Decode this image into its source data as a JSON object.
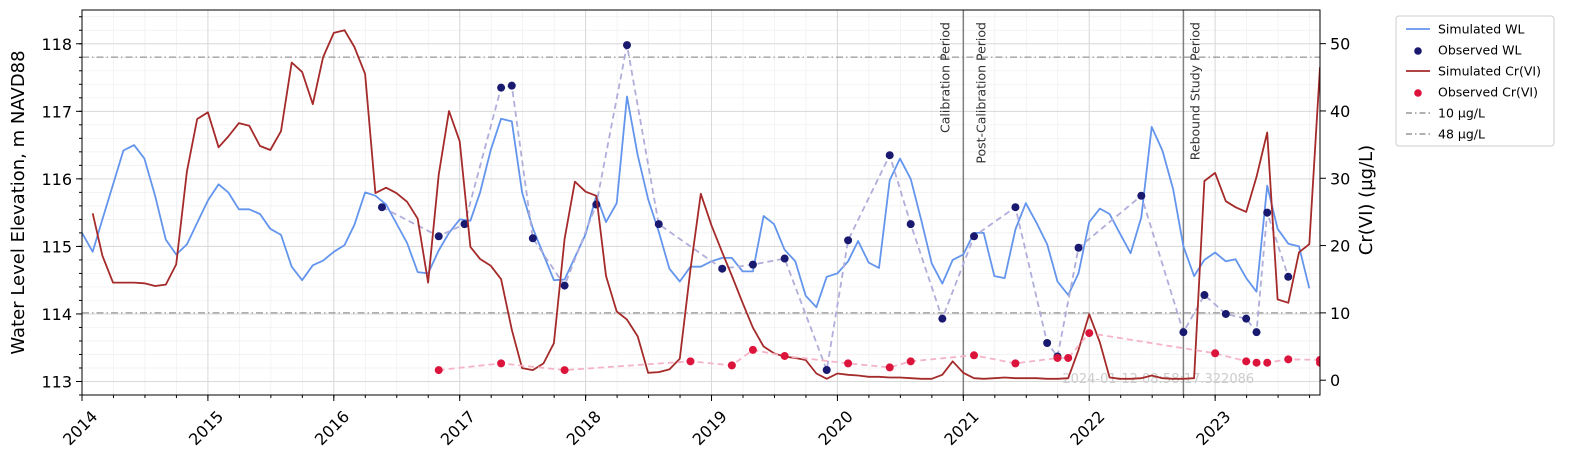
{
  "chart_data": {
    "type": "line",
    "xlim": [
      "2014-01-01",
      "2023-11-01"
    ],
    "x_ticks": [
      "2014",
      "2015",
      "2016",
      "2017",
      "2018",
      "2019",
      "2020",
      "2021",
      "2022",
      "2023"
    ],
    "ylabel_left": "Water Level Elevation, m NAVD88",
    "ylim_left": [
      112.8,
      118.5
    ],
    "yticks_left": [
      113,
      114,
      115,
      116,
      117,
      118
    ],
    "ylabel_right": "Cr(VI) (µg/L)",
    "ylim_right": [
      -2.2,
      55
    ],
    "yticks_right": [
      0,
      10,
      20,
      30,
      40,
      50
    ],
    "grid": true,
    "legend_position": "outside upper right",
    "watermark": "2024-01-12 08:58:17.322086",
    "period_lines": [
      {
        "date": "2021-01-01",
        "labels": [
          "Calibration Period",
          "Post-Calibration Period"
        ]
      },
      {
        "date": "2022-10-01",
        "labels": [
          "Rebound Study Period"
        ]
      }
    ],
    "thresholds": [
      {
        "name": "10 µg/L",
        "value": 10
      },
      {
        "name": "48 µg/L",
        "value": 48
      }
    ],
    "series": [
      {
        "name": "Simulated WL",
        "kind": "line",
        "axis": "left",
        "color": "#6495ED",
        "x": [
          "2014-01-01",
          "2014-02-01",
          "2014-03-01",
          "2014-05-01",
          "2014-06-01",
          "2014-07-01",
          "2014-08-01",
          "2014-09-01",
          "2014-10-01",
          "2014-11-01",
          "2014-12-01",
          "2015-01-01",
          "2015-02-01",
          "2015-03-01",
          "2015-04-01",
          "2015-05-01",
          "2015-06-01",
          "2015-07-01",
          "2015-08-01",
          "2015-09-01",
          "2015-10-01",
          "2015-11-01",
          "2015-12-01",
          "2016-01-01",
          "2016-02-01",
          "2016-03-01",
          "2016-04-01",
          "2016-05-01",
          "2016-06-01",
          "2016-08-01",
          "2016-09-01",
          "2016-10-01",
          "2016-11-01",
          "2016-12-01",
          "2017-01-01",
          "2017-02-01",
          "2017-03-01",
          "2017-04-01",
          "2017-05-01",
          "2017-06-01",
          "2017-07-01",
          "2017-08-01",
          "2017-09-01",
          "2017-10-01",
          "2017-11-01",
          "2018-01-01",
          "2018-02-01",
          "2018-03-01",
          "2018-04-01",
          "2018-05-01",
          "2018-06-01",
          "2018-07-01",
          "2018-08-01",
          "2018-09-01",
          "2018-10-01",
          "2018-11-01",
          "2018-12-01",
          "2019-01-01",
          "2019-02-01",
          "2019-03-01",
          "2019-04-01",
          "2019-05-01",
          "2019-06-01",
          "2019-07-01",
          "2019-08-01",
          "2019-09-01",
          "2019-10-01",
          "2019-11-01",
          "2019-12-01",
          "2020-01-01",
          "2020-02-01",
          "2020-03-01",
          "2020-04-01",
          "2020-05-01",
          "2020-06-01",
          "2020-07-01",
          "2020-08-01",
          "2020-09-01",
          "2020-10-01",
          "2020-11-01",
          "2020-12-01",
          "2021-01-01",
          "2021-02-01",
          "2021-03-01",
          "2021-04-01",
          "2021-05-01",
          "2021-06-01",
          "2021-07-01",
          "2021-08-01",
          "2021-09-01",
          "2021-10-01",
          "2021-11-01",
          "2021-12-01",
          "2022-01-01",
          "2022-02-01",
          "2022-03-01",
          "2022-04-01",
          "2022-05-01",
          "2022-06-01",
          "2022-07-01",
          "2022-08-01",
          "2022-09-01",
          "2022-10-01",
          "2022-11-01",
          "2022-12-01",
          "2023-01-01",
          "2023-02-01",
          "2023-03-01",
          "2023-04-01",
          "2023-05-01",
          "2023-06-01",
          "2023-07-01",
          "2023-08-01",
          "2023-09-01",
          "2023-10-01"
        ],
        "y": [
          115.2,
          114.92,
          115.4,
          116.42,
          116.5,
          116.3,
          115.75,
          115.1,
          114.88,
          115.03,
          115.35,
          115.68,
          115.92,
          115.8,
          115.55,
          115.55,
          115.48,
          115.26,
          115.17,
          114.7,
          114.5,
          114.72,
          114.79,
          114.92,
          115.02,
          115.32,
          115.8,
          115.75,
          115.62,
          115.05,
          114.62,
          114.6,
          114.94,
          115.2,
          115.4,
          115.38,
          115.8,
          116.43,
          116.89,
          116.85,
          115.8,
          115.27,
          114.88,
          114.5,
          114.51,
          115.18,
          115.75,
          115.36,
          115.64,
          117.22,
          116.35,
          115.7,
          115.22,
          114.67,
          114.48,
          114.7,
          114.7,
          114.78,
          114.83,
          114.83,
          114.63,
          114.63,
          115.45,
          115.33,
          114.95,
          114.78,
          114.27,
          114.1,
          114.55,
          114.6,
          114.78,
          115.08,
          114.76,
          114.68,
          115.98,
          116.3,
          116.0,
          115.38,
          114.75,
          114.45,
          114.8,
          114.88,
          115.2,
          115.2,
          114.56,
          114.53,
          115.25,
          115.64,
          115.35,
          115.03,
          114.48,
          114.28,
          114.6,
          115.36,
          115.56,
          115.48,
          115.18,
          114.9,
          115.43,
          116.77,
          116.42,
          115.85,
          115.0,
          114.56,
          114.8,
          114.91,
          114.78,
          114.81,
          114.53,
          114.33,
          115.9,
          115.26,
          115.04,
          115.0,
          114.38
        ]
      },
      {
        "name": "Observed WL",
        "kind": "markers",
        "axis": "left",
        "color": "#191970",
        "dashed_color": "#B0AEDB",
        "x": [
          "2016-05-20",
          "2016-11-01",
          "2017-01-15",
          "2017-05-01",
          "2017-06-01",
          "2017-08-01",
          "2017-11-01",
          "2018-02-01",
          "2018-05-01",
          "2018-08-01",
          "2019-02-01",
          "2019-05-01",
          "2019-08-01",
          "2019-12-01",
          "2020-02-01",
          "2020-06-01",
          "2020-08-01",
          "2020-11-01",
          "2021-02-01",
          "2021-06-01",
          "2021-09-01",
          "2021-10-01",
          "2021-12-01",
          "2022-06-01",
          "2022-10-01",
          "2022-12-01",
          "2023-02-01",
          "2023-04-01",
          "2023-05-01",
          "2023-06-01",
          "2023-08-01"
        ],
        "y": [
          115.58,
          115.15,
          115.33,
          117.35,
          117.38,
          115.12,
          114.42,
          115.62,
          117.98,
          115.33,
          114.67,
          114.73,
          114.82,
          113.17,
          115.09,
          116.35,
          115.33,
          113.93,
          115.15,
          115.58,
          113.57,
          113.37,
          114.98,
          115.75,
          113.73,
          114.28,
          114.0,
          113.93,
          113.73,
          115.5,
          114.55
        ]
      },
      {
        "name": "Simulated Cr(VI)",
        "kind": "line",
        "axis": "right",
        "color": "#A52A2A",
        "x": [
          "2014-02-01",
          "2014-03-01",
          "2014-04-01",
          "2014-06-01",
          "2014-07-01",
          "2014-08-01",
          "2014-09-01",
          "2014-10-01",
          "2014-11-01",
          "2014-12-01",
          "2015-01-01",
          "2015-02-01",
          "2015-03-01",
          "2015-04-01",
          "2015-05-01",
          "2015-06-01",
          "2015-07-01",
          "2015-08-01",
          "2015-09-01",
          "2015-10-01",
          "2015-11-01",
          "2015-12-01",
          "2016-01-01",
          "2016-02-01",
          "2016-03-01",
          "2016-04-01",
          "2016-05-01",
          "2016-06-01",
          "2016-07-01",
          "2016-08-01",
          "2016-09-01",
          "2016-10-01",
          "2016-11-01",
          "2016-12-01",
          "2017-01-01",
          "2017-02-01",
          "2017-03-01",
          "2017-04-01",
          "2017-05-01",
          "2017-06-01",
          "2017-07-01",
          "2017-08-01",
          "2017-09-01",
          "2017-10-01",
          "2017-11-01",
          "2017-12-01",
          "2018-01-01",
          "2018-02-01",
          "2018-03-01",
          "2018-04-01",
          "2018-05-01",
          "2018-06-01",
          "2018-07-01",
          "2018-08-01",
          "2018-09-01",
          "2018-10-01",
          "2018-11-01",
          "2018-12-01",
          "2019-01-01",
          "2019-02-01",
          "2019-03-01",
          "2019-04-01",
          "2019-05-01",
          "2019-06-01",
          "2019-07-01",
          "2019-08-01",
          "2019-09-01",
          "2019-10-01",
          "2019-11-01",
          "2019-12-01",
          "2020-01-01",
          "2020-02-01",
          "2020-03-01",
          "2020-04-01",
          "2020-05-01",
          "2020-06-01",
          "2020-07-01",
          "2020-08-01",
          "2020-09-01",
          "2020-10-01",
          "2020-11-01",
          "2020-12-01",
          "2021-01-01",
          "2021-02-01",
          "2021-03-01",
          "2021-04-01",
          "2021-05-01",
          "2021-06-01",
          "2021-07-01",
          "2021-08-01",
          "2021-09-01",
          "2021-10-01",
          "2021-11-01",
          "2021-12-01",
          "2022-01-01",
          "2022-02-01",
          "2022-03-01",
          "2022-04-01",
          "2022-05-01",
          "2022-06-01",
          "2022-07-01",
          "2022-08-01",
          "2022-09-01",
          "2022-10-01",
          "2022-11-01",
          "2022-12-01",
          "2023-01-01",
          "2023-02-01",
          "2023-03-01",
          "2023-04-01",
          "2023-05-01",
          "2023-06-01",
          "2023-07-01",
          "2023-08-01",
          "2023-09-01",
          "2023-10-01",
          "2023-11-01"
        ],
        "y": [
          24.8,
          18.5,
          14.5,
          14.5,
          14.4,
          14.0,
          14.2,
          17.2,
          31.0,
          38.8,
          39.8,
          34.6,
          36.2,
          38.2,
          37.8,
          34.8,
          34.2,
          37.0,
          47.2,
          45.8,
          41.0,
          48.0,
          51.6,
          52.0,
          49.5,
          45.5,
          27.8,
          28.6,
          27.8,
          26.5,
          24.0,
          14.5,
          30.5,
          40.0,
          35.5,
          19.8,
          18.0,
          17.0,
          15.0,
          7.5,
          1.8,
          1.5,
          2.5,
          5.5,
          21.0,
          29.5,
          28.0,
          27.4,
          15.5,
          10.2,
          9.0,
          6.5,
          1.1,
          1.2,
          1.6,
          3.2,
          16.5,
          27.7,
          23.0,
          19.0,
          15.5,
          11.5,
          7.8,
          5.0,
          4.0,
          3.5,
          3.3,
          3.0,
          1.0,
          0.2,
          1.0,
          0.8,
          0.7,
          0.5,
          0.5,
          0.4,
          0.4,
          0.3,
          0.2,
          0.2,
          0.8,
          2.8,
          1.1,
          0.3,
          0.2,
          0.3,
          0.4,
          0.3,
          0.3,
          0.3,
          0.2,
          0.2,
          0.3,
          4.5,
          9.8,
          5.6,
          0.4,
          0.2,
          0.2,
          0.3,
          0.7,
          0.3,
          0.2,
          0.2,
          0.3,
          29.6,
          30.8,
          26.6,
          25.7,
          25.0,
          30.2,
          36.8,
          12.0,
          11.5,
          19.0,
          20.2,
          46.5
        ]
      },
      {
        "name": "Observed Cr(VI)",
        "kind": "markers",
        "axis": "right",
        "color": "#DC143C",
        "dashed_color": "#F4B4C6",
        "x": [
          "2016-11-01",
          "2017-05-01",
          "2017-11-01",
          "2018-11-01",
          "2019-03-01",
          "2019-05-01",
          "2019-08-01",
          "2020-02-01",
          "2020-06-01",
          "2020-08-01",
          "2021-02-01",
          "2021-06-01",
          "2021-10-01",
          "2021-11-01",
          "2022-01-01",
          "2023-01-01",
          "2023-04-01",
          "2023-05-01",
          "2023-06-01",
          "2023-08-01",
          "2023-11-01",
          "2023-11-01"
        ],
        "y": [
          1.5,
          2.5,
          1.5,
          2.8,
          2.2,
          4.5,
          3.6,
          2.5,
          1.9,
          2.8,
          3.7,
          2.5,
          3.3,
          3.3,
          7.0,
          4.0,
          2.8,
          2.6,
          2.6,
          3.1,
          3.0,
          2.6
        ]
      }
    ]
  }
}
